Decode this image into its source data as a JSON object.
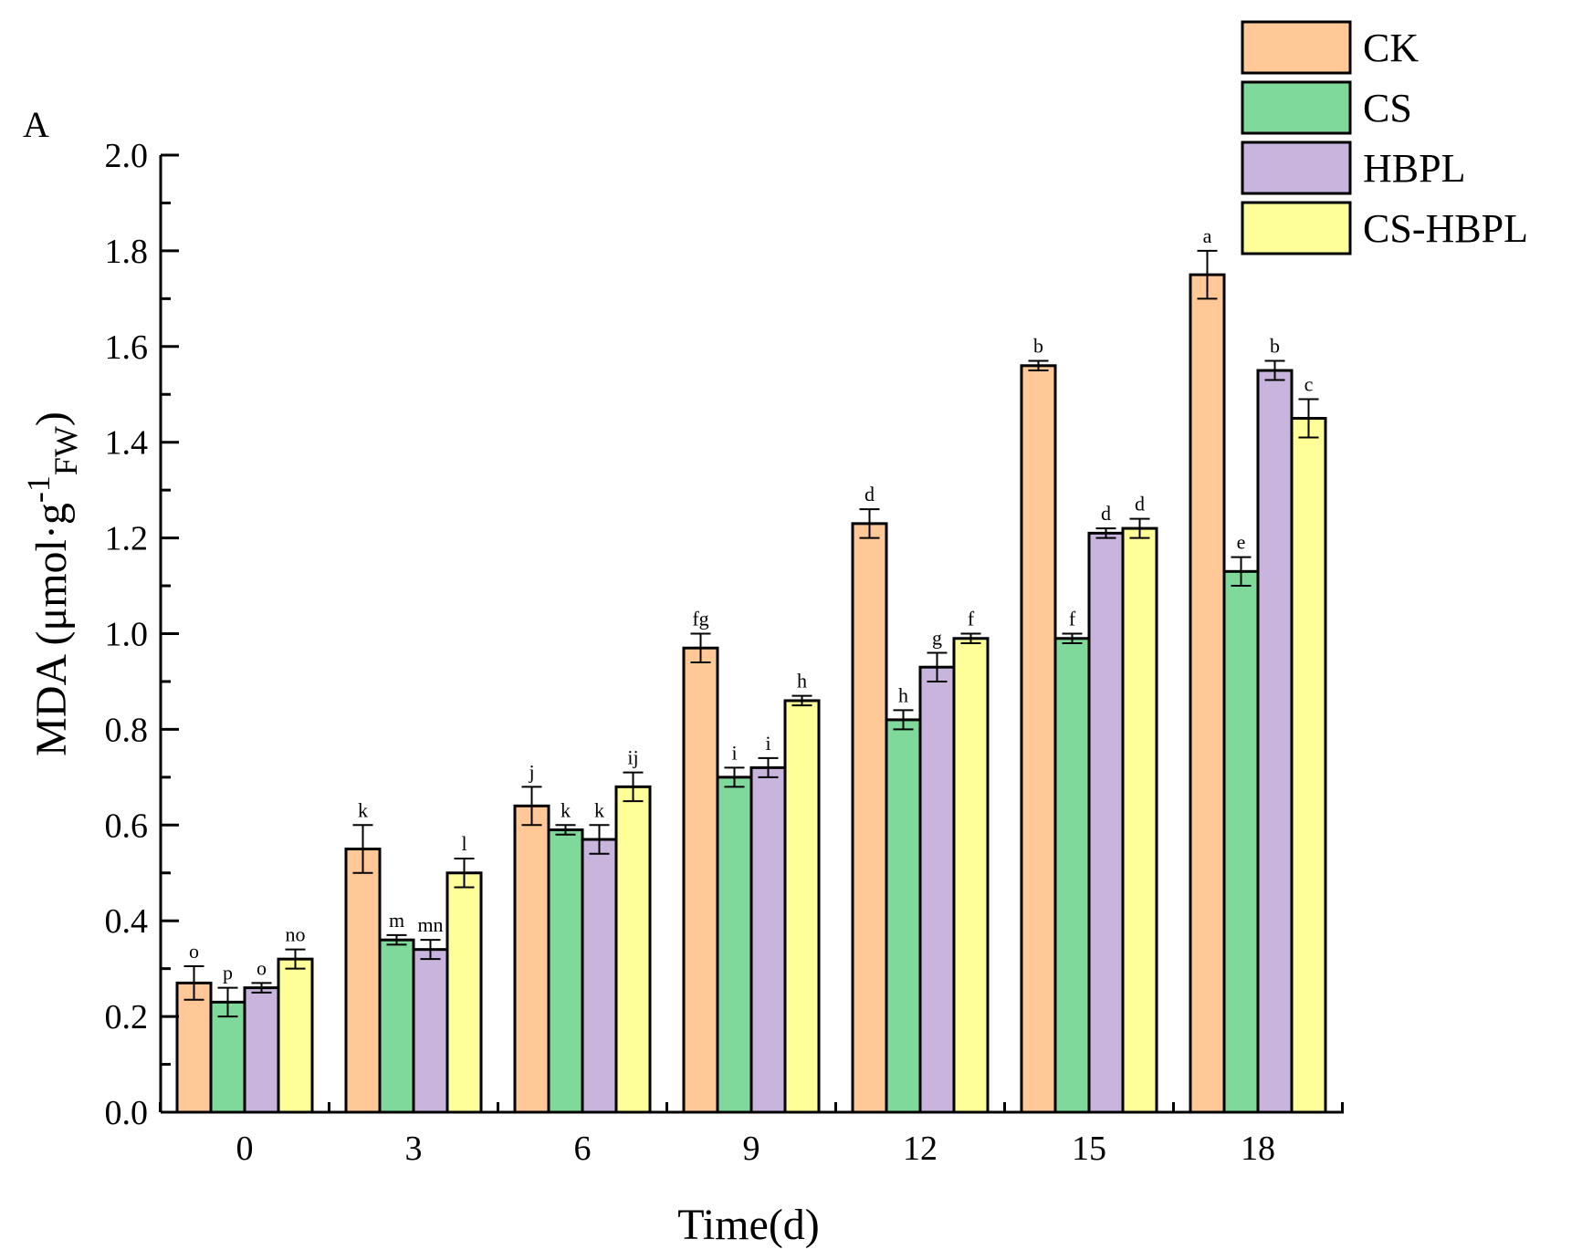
{
  "panel_label": "A",
  "colors": {
    "CK": "#FFC896",
    "CS": "#7ED99B",
    "HBPL": "#C8B4DC",
    "CS-HBPL": "#FFFF99",
    "axis": "#000000"
  },
  "chart_data": {
    "type": "bar",
    "title": "",
    "xlabel": "Time(d)",
    "ylabel": "MDA (μmol·g",
    "ylabel_sup": "-1",
    "ylabel_sub": "FW",
    "ylabel_close": ")",
    "ylim": [
      0,
      2.0
    ],
    "yticks": [
      "0.0",
      "0.2",
      "0.4",
      "0.6",
      "0.8",
      "1.0",
      "1.2",
      "1.4",
      "1.6",
      "1.8",
      "2.0"
    ],
    "categories": [
      "0",
      "3",
      "6",
      "9",
      "12",
      "15",
      "18"
    ],
    "legend_position": "top-right",
    "series": [
      {
        "name": "CK",
        "values": [
          0.27,
          0.55,
          0.64,
          0.97,
          1.23,
          1.56,
          1.75
        ],
        "errors": [
          0.035,
          0.05,
          0.04,
          0.03,
          0.03,
          0.01,
          0.05
        ],
        "labels": [
          "o",
          "k",
          "j",
          "fg",
          "d",
          "b",
          "a"
        ]
      },
      {
        "name": "CS",
        "values": [
          0.23,
          0.36,
          0.59,
          0.7,
          0.82,
          0.99,
          1.13
        ],
        "errors": [
          0.03,
          0.01,
          0.01,
          0.02,
          0.02,
          0.01,
          0.03
        ],
        "labels": [
          "p",
          "m",
          "k",
          "i",
          "h",
          "f",
          "e"
        ]
      },
      {
        "name": "HBPL",
        "values": [
          0.26,
          0.34,
          0.57,
          0.72,
          0.93,
          1.21,
          1.55
        ],
        "errors": [
          0.01,
          0.02,
          0.03,
          0.02,
          0.03,
          0.01,
          0.02
        ],
        "labels": [
          "o",
          "mn",
          "k",
          "i",
          "g",
          "d",
          "b"
        ]
      },
      {
        "name": "CS-HBPL",
        "values": [
          0.32,
          0.5,
          0.68,
          0.86,
          0.99,
          1.22,
          1.45
        ],
        "errors": [
          0.02,
          0.03,
          0.03,
          0.01,
          0.01,
          0.02,
          0.04
        ],
        "labels": [
          "no",
          "l",
          "ij",
          "h",
          "f",
          "d",
          "c"
        ]
      }
    ]
  }
}
